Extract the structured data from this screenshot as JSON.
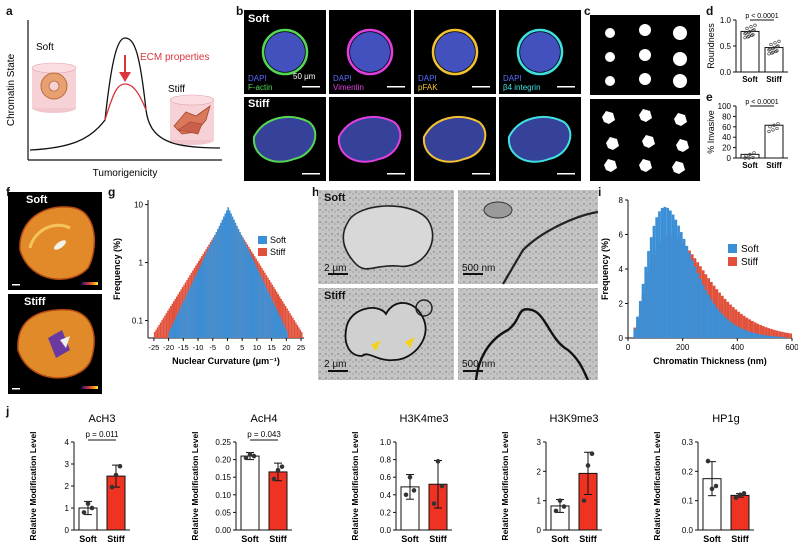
{
  "panel_labels": [
    "a",
    "b",
    "c",
    "d",
    "e",
    "f",
    "g",
    "h",
    "i",
    "j"
  ],
  "panel_a": {
    "ylabel": "Chromatin State",
    "xlabel": "Tumorigenicity",
    "soft_label": "Soft",
    "stiff_label": "Stiff",
    "annotation": "ECM properties",
    "colors": {
      "curve": "#111111",
      "ecm": "#d9363e"
    }
  },
  "panel_b": {
    "row_labels": [
      "Soft",
      "Stiff"
    ],
    "stains": [
      {
        "dapi": "DAPI",
        "marker": "F-actin",
        "marker_color": "#55d655"
      },
      {
        "dapi": "DAPI",
        "marker": "Vimentin",
        "marker_color": "#e040e0"
      },
      {
        "dapi": "DAPI",
        "marker": "pFAK",
        "marker_color": "#f2c230"
      },
      {
        "dapi": "DAPI",
        "marker": "β4 integrin",
        "marker_color": "#40e0e0"
      }
    ],
    "scalebar_label": "50 μm",
    "dapi_color": "#5a6cff"
  },
  "panel_d": {
    "ylabel": "Roundness",
    "pvalue": "p < 0.0001",
    "categories": [
      "Soft",
      "Stiff"
    ],
    "chart_data": {
      "type": "bar",
      "categories": [
        "Soft",
        "Stiff"
      ],
      "values": [
        0.78,
        0.47
      ],
      "ylim": [
        0,
        1.0
      ],
      "yticks": [
        "0.0",
        "0.5",
        "1.0"
      ]
    }
  },
  "panel_e": {
    "ylabel": "% Invasive",
    "pvalue": "p < 0.0001",
    "categories": [
      "Soft",
      "Stiff"
    ],
    "chart_data": {
      "type": "bar",
      "categories": [
        "Soft",
        "Stiff"
      ],
      "values": [
        7,
        63
      ],
      "ylim": [
        0,
        100
      ],
      "yticks": [
        "0",
        "20",
        "40",
        "60",
        "80",
        "100"
      ]
    }
  },
  "panel_f": {
    "row_labels": [
      "Soft",
      "Stiff"
    ]
  },
  "panel_g": {
    "xlabel": "Nuclear Curvature (μm⁻¹)",
    "ylabel": "Frequency (%)",
    "legend": [
      {
        "name": "Soft",
        "color": "#3a8fd6"
      },
      {
        "name": "Stiff",
        "color": "#e0503a"
      }
    ],
    "chart_data": {
      "type": "histogram",
      "x_range": [
        -27,
        26
      ],
      "y_scale": "log",
      "xticks": [
        "-25",
        "-20",
        "-15",
        "-10",
        "-5",
        "0",
        "5",
        "10",
        "15",
        "20",
        "25"
      ],
      "yticks": [
        "0.1",
        "1",
        "10"
      ],
      "series": [
        {
          "name": "Soft",
          "peak": 9,
          "sigma": 6.5
        },
        {
          "name": "Stiff",
          "peak": 7,
          "sigma": 8.5
        }
      ]
    }
  },
  "panel_h": {
    "row_labels": [
      "Soft",
      "Stiff"
    ],
    "scalebars": [
      "2 μm",
      "500 nm",
      "2 μm",
      "500 nm"
    ]
  },
  "panel_i": {
    "xlabel": "Chromatin Thickness (nm)",
    "ylabel": "Frequency (%)",
    "legend": [
      {
        "name": "Soft",
        "color": "#3a8fd6"
      },
      {
        "name": "Stiff",
        "color": "#e0503a"
      }
    ],
    "chart_data": {
      "type": "histogram",
      "x_range": [
        0,
        600
      ],
      "xticks": [
        "0",
        "200",
        "400",
        "600"
      ],
      "ylim": [
        0,
        8
      ],
      "yticks": [
        "0",
        "2",
        "4",
        "6",
        "8"
      ],
      "series": [
        {
          "name": "Soft",
          "peak": 7.6,
          "mode": 130
        },
        {
          "name": "Stiff",
          "peak": 6.0,
          "mode": 150
        }
      ]
    }
  },
  "panel_j": {
    "ylabel": "Relative Modification Level",
    "categories": [
      "Soft",
      "Stiff"
    ],
    "colors": {
      "soft": "#ffffff",
      "stiff": "#ee3322"
    },
    "chart_data": [
      {
        "type": "bar",
        "title": "AcH3",
        "categories": [
          "Soft",
          "Stiff"
        ],
        "values": [
          1.0,
          2.45
        ],
        "errors": [
          0.3,
          0.5
        ],
        "ylim": [
          0,
          4
        ],
        "yticks": [
          "0",
          "1",
          "2",
          "3",
          "4"
        ],
        "pvalue": "p = 0.011",
        "points": [
          [
            0.8,
            1.2,
            1.0
          ],
          [
            1.95,
            2.5,
            2.9
          ]
        ]
      },
      {
        "type": "bar",
        "title": "AcH4",
        "categories": [
          "Soft",
          "Stiff"
        ],
        "values": [
          0.21,
          0.165
        ],
        "errors": [
          0.01,
          0.025
        ],
        "ylim": [
          0,
          0.25
        ],
        "yticks": [
          "0.00",
          "0.05",
          "0.10",
          "0.15",
          "0.20",
          "0.25"
        ],
        "pvalue": "p = 0.043",
        "points": [
          [
            0.205,
            0.215,
            0.21
          ],
          [
            0.145,
            0.17,
            0.18
          ]
        ]
      },
      {
        "type": "bar",
        "title": "H3K4me3",
        "categories": [
          "Soft",
          "Stiff"
        ],
        "values": [
          0.49,
          0.52
        ],
        "errors": [
          0.14,
          0.27
        ],
        "ylim": [
          0,
          1.0
        ],
        "yticks": [
          "0.0",
          "0.2",
          "0.4",
          "0.6",
          "0.8",
          "1.0"
        ],
        "pvalue": "",
        "points": [
          [
            0.4,
            0.6,
            0.45
          ],
          [
            0.3,
            0.78,
            0.5
          ]
        ]
      },
      {
        "type": "bar",
        "title": "H3K9me3",
        "categories": [
          "Soft",
          "Stiff"
        ],
        "values": [
          0.82,
          1.93
        ],
        "errors": [
          0.22,
          0.72
        ],
        "ylim": [
          0,
          3
        ],
        "yticks": [
          "0",
          "1",
          "2",
          "3"
        ],
        "pvalue": "",
        "points": [
          [
            0.65,
            1.0,
            0.8
          ],
          [
            1.0,
            2.2,
            2.6
          ]
        ]
      },
      {
        "type": "bar",
        "title": "HP1g",
        "categories": [
          "Soft",
          "Stiff"
        ],
        "values": [
          0.175,
          0.118
        ],
        "errors": [
          0.058,
          0.006
        ],
        "ylim": [
          0,
          0.3
        ],
        "yticks": [
          "0.0",
          "0.1",
          "0.2",
          "0.3"
        ],
        "pvalue": "",
        "points": [
          [
            0.235,
            0.14,
            0.15
          ],
          [
            0.11,
            0.12,
            0.125
          ]
        ]
      }
    ]
  }
}
